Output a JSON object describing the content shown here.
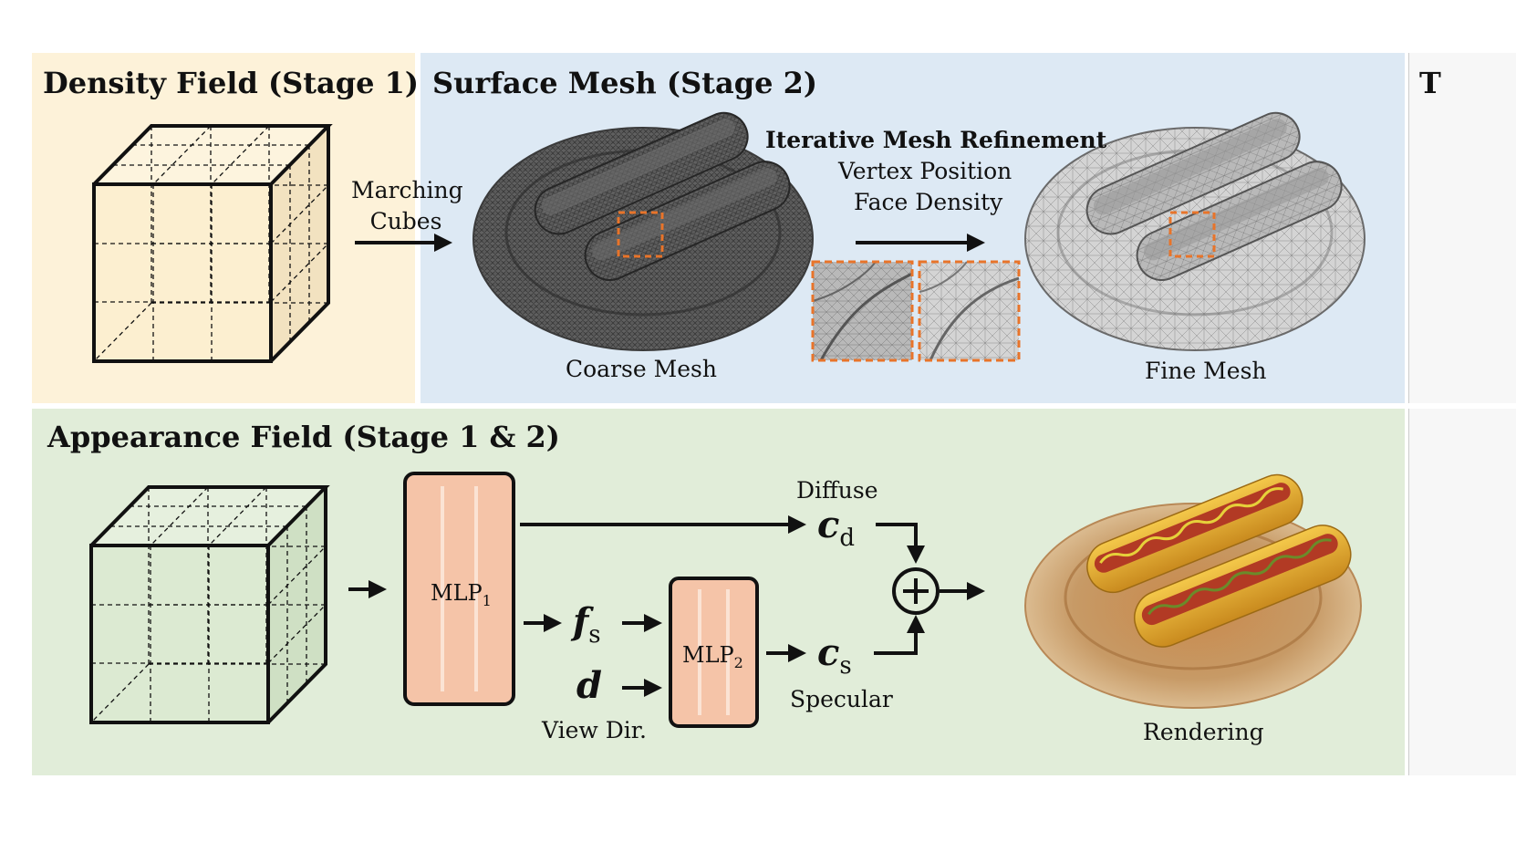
{
  "panels": {
    "density": {
      "title": "Density Field (Stage 1)"
    },
    "surface": {
      "title": "Surface Mesh (Stage 2)",
      "step": "Marching Cubes",
      "coarse_label": "Coarse Mesh",
      "refine_title": "Iterative Mesh Refinement",
      "refine_line1": "Vertex Position",
      "refine_line2": "Face Density",
      "fine_label": "Fine Mesh"
    },
    "next": {
      "title": "T"
    },
    "appearance": {
      "title": "Appearance Field (Stage 1 & 2)",
      "mlp1": {
        "name": "MLP",
        "sub": "1"
      },
      "mlp2": {
        "name": "MLP",
        "sub": "2"
      },
      "fs": {
        "sym": "f",
        "sub": "s"
      },
      "d": {
        "sym": "d"
      },
      "view_dir": "View Dir.",
      "cd": {
        "sym": "c",
        "sub": "d"
      },
      "cs": {
        "sym": "c",
        "sub": "s"
      },
      "diffuse": "Diffuse",
      "specular": "Specular",
      "rendering": "Rendering"
    }
  },
  "colors": {
    "density_bg": "#fdf2d9",
    "surface_bg": "#dde9f4",
    "appearance_bg": "#e1edd9",
    "mlp_fill": "#f5c4a8",
    "highlight": "#e8742a"
  }
}
